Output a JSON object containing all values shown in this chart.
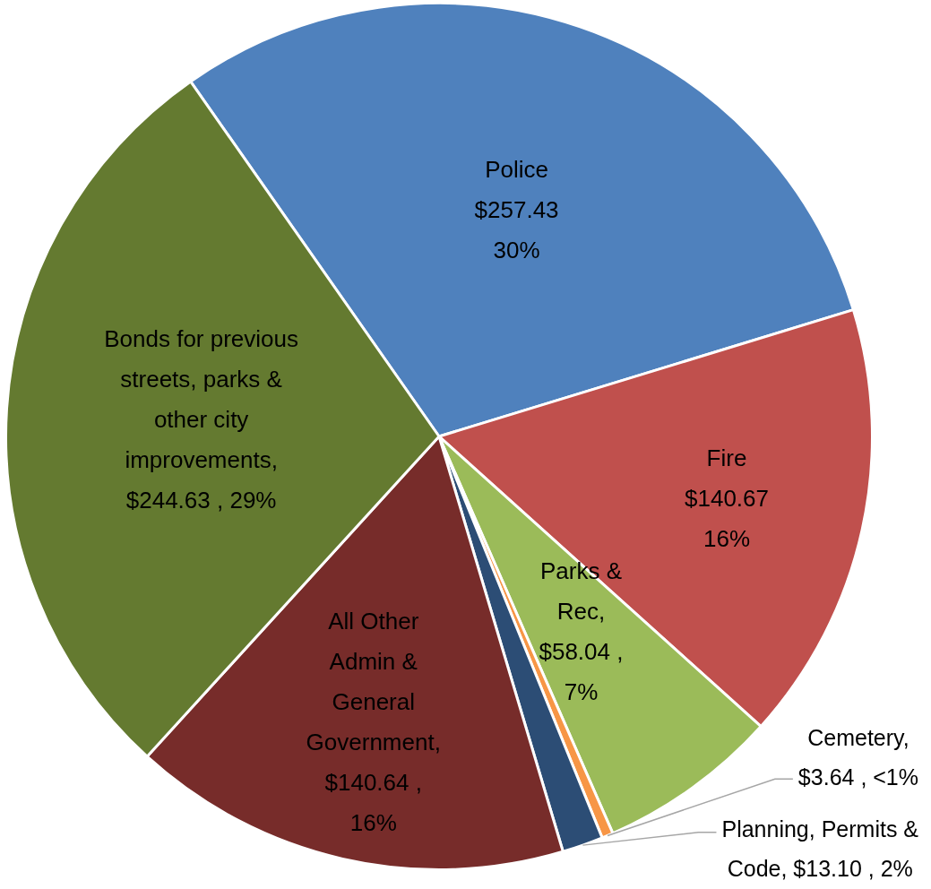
{
  "chart_data": {
    "type": "pie",
    "categories": [
      "Police",
      "Fire",
      "Parks & Rec",
      "Cemetery",
      "Planning, Permits & Code",
      "All Other Admin & General Government",
      "Bonds for previous streets, parks & other city improvements"
    ],
    "values": [
      257.43,
      140.67,
      58.04,
      3.64,
      13.1,
      140.64,
      244.63
    ],
    "value_labels": [
      "$257.43 30%",
      "$140.67 16%",
      ", $58.04 , 7%",
      ", $3.64 , <1%",
      ", $13.10 , 2%",
      ", $140.64 , 16%",
      ", $244.63 , 29%"
    ],
    "colors": [
      "#4f81bd",
      "#c0504d",
      "#9bbb59",
      "#f79646",
      "#2c4d75",
      "#772c2a",
      "#647a30"
    ],
    "legend": false
  }
}
